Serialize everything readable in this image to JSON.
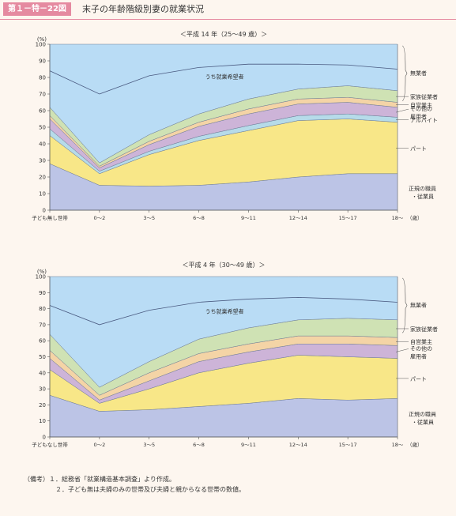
{
  "header": {
    "figure_number": "第１－特－22図",
    "title": "末子の年齢階級別妻の就業状況"
  },
  "notes": {
    "label": "（備考）",
    "line1": "１．総務省「就業構造基本調査」より作成。",
    "line2": "２．子ども無は夫婦のみの世帯及び夫婦と親からなる世帯の数値。"
  },
  "chart_data": [
    {
      "type": "area",
      "title": "＜平成 14 年（25～49 歳）＞",
      "ylabel": "(%)",
      "ylim": [
        0,
        100
      ],
      "yticks": [
        0,
        10,
        20,
        30,
        40,
        50,
        60,
        70,
        80,
        90,
        100
      ],
      "xlabel": "（歳）",
      "categories": [
        "子ども無し世帯",
        "0～2",
        "3～5",
        "6～8",
        "9～11",
        "12～14",
        "15～17",
        "18～"
      ],
      "stacked": true,
      "series": [
        {
          "name": "正規の職員・従業員",
          "color": "#bcc4e6",
          "values": [
            28,
            15,
            14.5,
            15,
            17,
            20,
            22,
            22
          ]
        },
        {
          "name": "パート",
          "color": "#f8e788",
          "values": [
            17,
            7,
            19,
            27,
            31,
            34,
            33,
            31
          ]
        },
        {
          "name": "アルバイト",
          "color": "#b6dbe9",
          "values": [
            4,
            1.5,
            2,
            2.5,
            3,
            3,
            3,
            3
          ]
        },
        {
          "name": "その他の雇用者",
          "color": "#cdb4d8",
          "values": [
            6,
            2,
            4,
            6,
            7,
            7,
            7,
            6
          ]
        },
        {
          "name": "自営業主",
          "color": "#f4d4a6",
          "values": [
            2,
            1,
            2,
            2.5,
            3,
            3,
            3,
            3
          ]
        },
        {
          "name": "家族従業者",
          "color": "#cfe2b4",
          "values": [
            5,
            2,
            4,
            5,
            6,
            6,
            7,
            7
          ]
        },
        {
          "name": "無業者",
          "color": "#b9dcf5",
          "values": [
            38,
            71.5,
            54.5,
            42,
            33,
            27,
            25,
            28
          ]
        }
      ],
      "line": {
        "name": "うち就業希望者",
        "values": [
          84,
          70,
          81,
          86,
          88,
          88,
          87.5,
          85
        ]
      }
    },
    {
      "type": "area",
      "title": "＜平成 4 年（30～49 歳）＞",
      "ylabel": "(%)",
      "ylim": [
        0,
        100
      ],
      "yticks": [
        0,
        10,
        20,
        30,
        40,
        50,
        60,
        70,
        80,
        90,
        100
      ],
      "xlabel": "（歳）",
      "categories": [
        "子どもなし世帯",
        "0～2",
        "3～5",
        "6～8",
        "9～11",
        "12～14",
        "15～17",
        "18～"
      ],
      "stacked": true,
      "series": [
        {
          "name": "正規の職員・従業員",
          "color": "#bcc4e6",
          "values": [
            26,
            16,
            17,
            19,
            21,
            24,
            23,
            24
          ]
        },
        {
          "name": "パート",
          "color": "#f8e788",
          "values": [
            16,
            5,
            13,
            21,
            25,
            27,
            27,
            25
          ]
        },
        {
          "name": "その他の雇用者",
          "color": "#cdb4d8",
          "values": [
            7,
            2,
            5,
            7,
            7,
            7,
            8,
            8
          ]
        },
        {
          "name": "自営業主",
          "color": "#f4d4a6",
          "values": [
            5,
            3,
            5,
            5,
            5,
            5,
            5,
            5
          ]
        },
        {
          "name": "家族従業者",
          "color": "#cfe2b4",
          "values": [
            10,
            5,
            7,
            9,
            10,
            10,
            11,
            11
          ]
        },
        {
          "name": "無業者",
          "color": "#b9dcf5",
          "values": [
            36,
            69,
            53,
            39,
            32,
            27,
            26,
            27
          ]
        }
      ],
      "line": {
        "name": "うち就業希望者",
        "values": [
          82,
          70,
          79,
          84,
          86,
          87,
          86,
          84
        ]
      }
    }
  ]
}
